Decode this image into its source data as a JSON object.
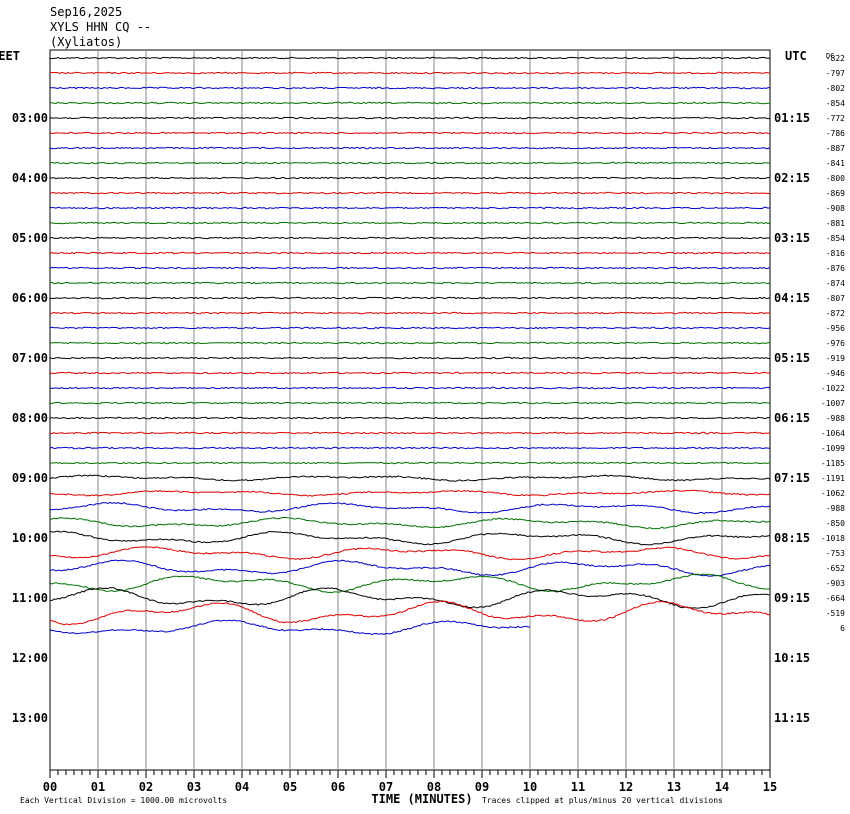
{
  "header": {
    "date": "Sep16,2025",
    "station": "XYLS HHN CQ --",
    "site": "(Xyliatos)"
  },
  "chart_data": {
    "type": "line",
    "title": "XYLS HHN CQ --",
    "left_timezone": "EET",
    "right_timezone": "UTC",
    "dc_label": "DC",
    "left_hour_labels": [
      "03:00",
      "04:00",
      "05:00",
      "06:00",
      "07:00",
      "08:00",
      "09:00",
      "10:00",
      "11:00",
      "12:00",
      "13:00"
    ],
    "right_hour_labels": [
      "01:15",
      "02:15",
      "03:15",
      "04:15",
      "05:15",
      "06:15",
      "07:15",
      "08:15",
      "09:15",
      "10:15",
      "11:15"
    ],
    "x_ticks": [
      "00",
      "01",
      "02",
      "03",
      "04",
      "05",
      "06",
      "07",
      "08",
      "09",
      "10",
      "11",
      "12",
      "13",
      "14",
      "15"
    ],
    "xlabel": "TIME (MINUTES)",
    "xlim": [
      0,
      15
    ],
    "grid": true,
    "trace_colors": [
      "#000000",
      "#e00000",
      "#0000c8",
      "#007000"
    ],
    "dc_offsets": [
      "-822",
      "-797",
      "-802",
      "-854",
      "-772",
      "-786",
      "-887",
      "-841",
      "-800",
      "-869",
      "-908",
      "-881",
      "-854",
      "-816",
      "-876",
      "-874",
      "-807",
      "-872",
      "-956",
      "-976",
      "-919",
      "-946",
      "-1022",
      "-1007",
      "-988",
      "-1064",
      "-1099",
      "-1185",
      "-1191",
      "-1062",
      "-988",
      "-850",
      "-1018",
      "-753",
      "-652",
      "-903",
      "-664",
      "-519",
      "6"
    ],
    "trace_activity": [
      1,
      1,
      1,
      1,
      1,
      1,
      1,
      1,
      1,
      1,
      1,
      1,
      1,
      1,
      1,
      1,
      1,
      1,
      1,
      1,
      1,
      1,
      1,
      1,
      1,
      1,
      1.5,
      1.5,
      2,
      2,
      4,
      4,
      5,
      5,
      6,
      7,
      8,
      9,
      6
    ],
    "partial_last_trace_minutes": 10,
    "footer_left": "Each Vertical Division = 1000.00 microvolts",
    "footer_right": "Traces clipped at plus/minus 20 vertical divisions"
  }
}
